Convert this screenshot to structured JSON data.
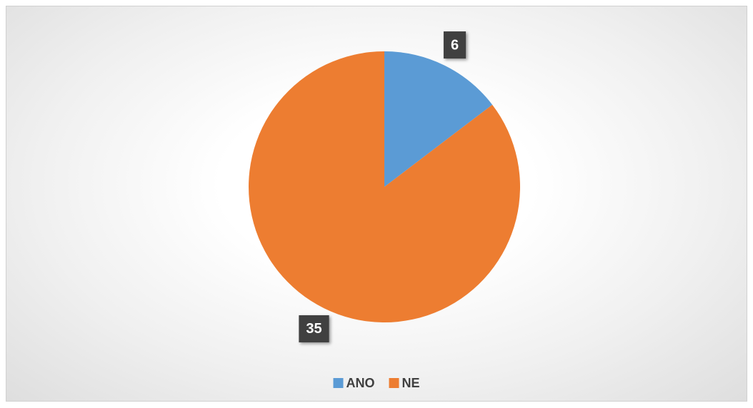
{
  "chart_data": {
    "type": "pie",
    "categories": [
      "ANO",
      "NE"
    ],
    "values": [
      6,
      35
    ],
    "colors": [
      "#5b9bd5",
      "#ed7d31"
    ],
    "legend": "bottom"
  }
}
